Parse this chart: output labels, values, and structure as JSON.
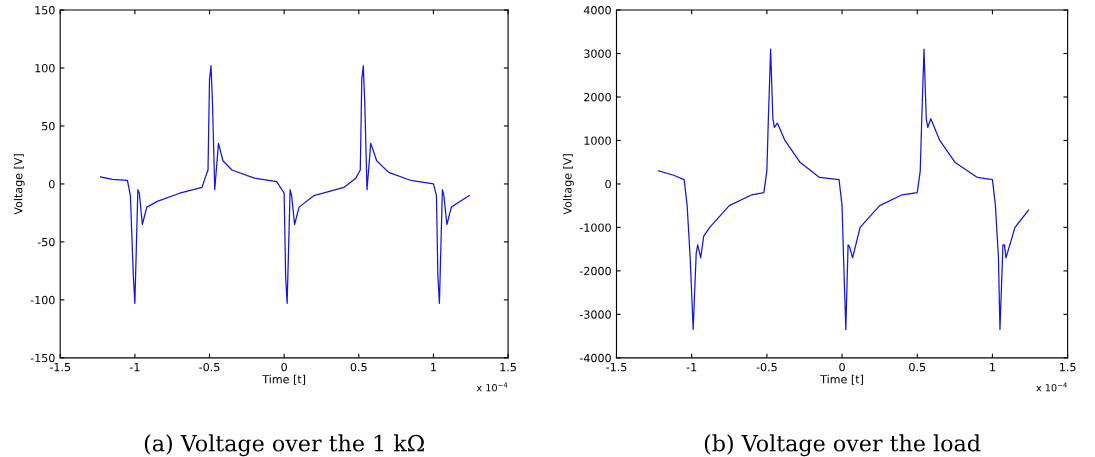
{
  "chart_data": [
    {
      "type": "line",
      "xlabel": "Time [t]",
      "ylabel": "Voltage [V]",
      "annotations": [
        "x 10$^{−4}$",
        "(a) Voltage over the 1 kΩ"
      ],
      "xlim": [
        -1.5,
        1.5
      ],
      "xticks": [
        -1.5,
        -1,
        -0.5,
        0,
        0.5,
        1,
        1.5
      ],
      "ylim": [
        -150,
        150
      ],
      "yticks": [
        -150,
        -100,
        -50,
        0,
        50,
        100,
        150
      ],
      "grid": false,
      "legend": false,
      "series": [
        {
          "color": "#1414e0",
          "x": [
            -1.23,
            -1.15,
            -1.05,
            -1.03,
            -1.01,
            -1.0,
            -0.98,
            -0.97,
            -0.95,
            -0.92,
            -0.85,
            -0.7,
            -0.55,
            -0.53,
            -0.51,
            -0.5,
            -0.49,
            -0.48,
            -0.465,
            -0.44,
            -0.41,
            -0.35,
            -0.2,
            -0.05,
            0.0,
            0.01,
            0.02,
            0.04,
            0.05,
            0.07,
            0.1,
            0.2,
            0.4,
            0.48,
            0.51,
            0.52,
            0.53,
            0.54,
            0.555,
            0.58,
            0.62,
            0.7,
            0.85,
            1.0,
            1.02,
            1.03,
            1.04,
            1.06,
            1.07,
            1.09,
            1.12,
            1.18,
            1.24
          ],
          "values": [
            6,
            4,
            3,
            -10,
            -80,
            -103,
            -5,
            -8,
            -35,
            -20,
            -15,
            -8,
            -3,
            5,
            12,
            90,
            102,
            70,
            -5,
            35,
            20,
            12,
            5,
            2,
            -8,
            -80,
            -103,
            -5,
            -10,
            -35,
            -20,
            -10,
            -3,
            5,
            12,
            90,
            102,
            70,
            -5,
            35,
            20,
            10,
            3,
            0,
            -10,
            -80,
            -103,
            -5,
            -10,
            -35,
            -20,
            -15,
            -10
          ]
        }
      ]
    },
    {
      "type": "line",
      "xlabel": "Time [t]",
      "ylabel": "Voltage [V]",
      "annotations": [
        "x 10$^{−4}$",
        "(b) Voltage over the load"
      ],
      "xlim": [
        -1.5,
        1.5
      ],
      "xticks": [
        -1.5,
        -1,
        -0.5,
        0,
        0.5,
        1,
        1.5
      ],
      "ylim": [
        -4000,
        4000
      ],
      "yticks": [
        -4000,
        -3000,
        -2000,
        -1000,
        0,
        1000,
        2000,
        3000,
        4000
      ],
      "grid": false,
      "legend": false,
      "series": [
        {
          "color": "#1414e0",
          "x": [
            -1.22,
            -1.12,
            -1.05,
            -1.03,
            -1.01,
            -0.99,
            -0.97,
            -0.96,
            -0.94,
            -0.92,
            -0.88,
            -0.75,
            -0.6,
            -0.52,
            -0.5,
            -0.49,
            -0.475,
            -0.46,
            -0.45,
            -0.43,
            -0.38,
            -0.28,
            -0.15,
            -0.02,
            0.0,
            0.01,
            0.025,
            0.04,
            0.05,
            0.07,
            0.12,
            0.25,
            0.4,
            0.5,
            0.52,
            0.53,
            0.545,
            0.56,
            0.57,
            0.59,
            0.65,
            0.75,
            0.9,
            1.0,
            1.02,
            1.04,
            1.05,
            1.07,
            1.08,
            1.09,
            1.15,
            1.24
          ],
          "values": [
            300,
            200,
            100,
            -500,
            -1700,
            -3350,
            -1600,
            -1400,
            -1700,
            -1200,
            -1000,
            -500,
            -250,
            -200,
            300,
            1500,
            3100,
            1500,
            1300,
            1400,
            1000,
            500,
            150,
            100,
            -500,
            -1700,
            -3350,
            -1400,
            -1450,
            -1700,
            -1000,
            -500,
            -250,
            -200,
            300,
            1500,
            3100,
            1500,
            1300,
            1500,
            1000,
            500,
            150,
            100,
            -500,
            -1700,
            -3350,
            -1400,
            -1400,
            -1700,
            -1000,
            -600
          ]
        }
      ]
    }
  ]
}
